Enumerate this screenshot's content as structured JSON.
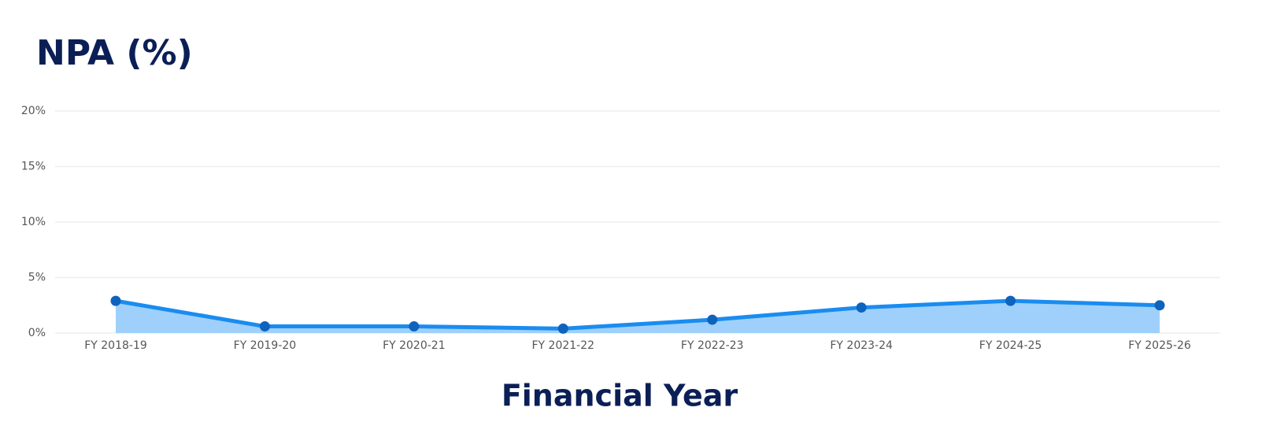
{
  "chart_data": {
    "type": "area",
    "title": "NPA (%)",
    "x_label": "Financial Year",
    "categories": [
      "FY 2018-19",
      "FY 2019-20",
      "FY 2020-21",
      "FY 2021-22",
      "FY 2022-23",
      "FY 2023-24",
      "FY 2024-25",
      "FY 2025-26"
    ],
    "values": [
      2.9,
      0.6,
      0.6,
      0.4,
      1.2,
      2.3,
      2.9,
      2.5
    ],
    "color": "#1a8cf0",
    "fill_color": "#9fd0fb",
    "marker_color": "#0e63bd",
    "ylim": [
      0,
      20
    ],
    "yticks": [
      {
        "value": 0,
        "label": "0%"
      },
      {
        "value": 5,
        "label": "5%"
      },
      {
        "value": 10,
        "label": "10%"
      },
      {
        "value": 15,
        "label": "15%"
      },
      {
        "value": 20,
        "label": "20%"
      }
    ],
    "grid": true
  }
}
